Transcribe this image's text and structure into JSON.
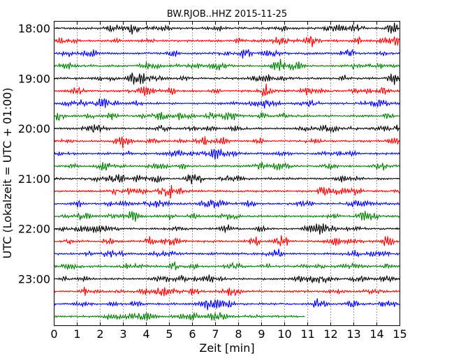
{
  "chart_data": {
    "type": "line",
    "title": "BW.RJOB..HHZ 2015-11-25",
    "xlabel": "Zeit  [min]",
    "ylabel": "UTC (Lokalzeit = UTC + 01:00)",
    "xlim": [
      0,
      15
    ],
    "x_ticks": [
      "0",
      "1",
      "2",
      "3",
      "4",
      "5",
      "6",
      "7",
      "8",
      "9",
      "10",
      "11",
      "12",
      "13",
      "14",
      "15"
    ],
    "y_tick_labels": [
      "18:00",
      "19:00",
      "20:00",
      "21:00",
      "22:00",
      "23:00"
    ],
    "grid": "vertical-dotted",
    "trace_colors": [
      "#000000",
      "#ff0000",
      "#0000ff",
      "#008000"
    ],
    "traces": [
      {
        "start": "18:00",
        "end_min": 15
      },
      {
        "start": "18:15",
        "end_min": 15
      },
      {
        "start": "18:30",
        "end_min": 15
      },
      {
        "start": "18:45",
        "end_min": 15
      },
      {
        "start": "19:00",
        "end_min": 15
      },
      {
        "start": "19:15",
        "end_min": 15
      },
      {
        "start": "19:30",
        "end_min": 15
      },
      {
        "start": "19:45",
        "end_min": 15
      },
      {
        "start": "20:00",
        "end_min": 15
      },
      {
        "start": "20:15",
        "end_min": 15
      },
      {
        "start": "20:30",
        "end_min": 15
      },
      {
        "start": "20:45",
        "end_min": 15
      },
      {
        "start": "21:00",
        "end_min": 15
      },
      {
        "start": "21:15",
        "end_min": 15
      },
      {
        "start": "21:30",
        "end_min": 15
      },
      {
        "start": "21:45",
        "end_min": 15
      },
      {
        "start": "22:00",
        "end_min": 15
      },
      {
        "start": "22:15",
        "end_min": 15
      },
      {
        "start": "22:30",
        "end_min": 15
      },
      {
        "start": "22:45",
        "end_min": 15
      },
      {
        "start": "23:00",
        "end_min": 15
      },
      {
        "start": "23:15",
        "end_min": 15
      },
      {
        "start": "23:30",
        "end_min": 15
      },
      {
        "start": "23:45",
        "end_min": 10.9
      }
    ]
  }
}
